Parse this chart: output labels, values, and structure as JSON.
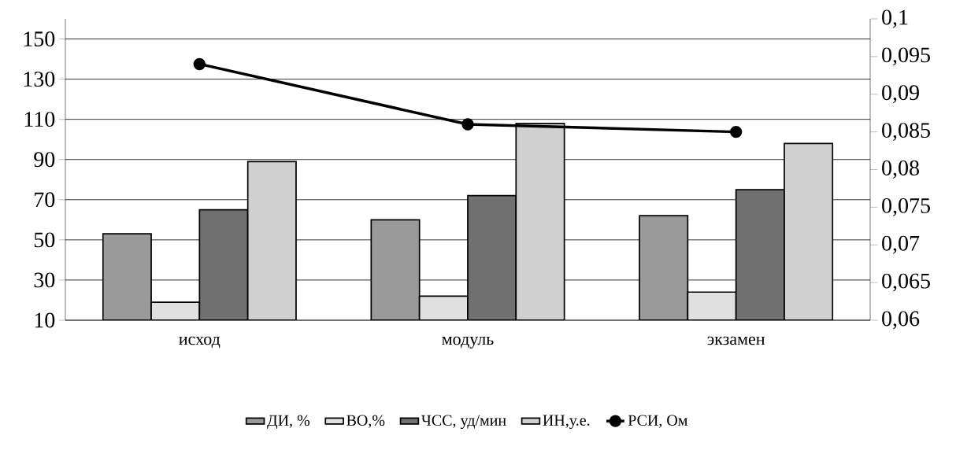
{
  "chart_data": {
    "type": "bar",
    "categories": [
      "исход",
      "модуль",
      "экзамен"
    ],
    "series": [
      {
        "name": "ДИ, %",
        "color": "#9a9a9a",
        "values": [
          53,
          60,
          62
        ]
      },
      {
        "name": "ВО,%",
        "color": "#e0e0e0",
        "values": [
          19,
          22,
          24
        ]
      },
      {
        "name": "ЧСС, уд/мин",
        "color": "#707070",
        "values": [
          65,
          72,
          75
        ]
      },
      {
        "name": "ИН,у.е.",
        "color": "#d0d0d0",
        "values": [
          89,
          108,
          98
        ]
      },
      {
        "name": "РСИ, Ом",
        "type": "line",
        "axis": "y2",
        "color": "#000000",
        "marker": "circle",
        "values": [
          0.094,
          0.086,
          0.085
        ]
      }
    ],
    "ylim": [
      10,
      160
    ],
    "yticks": [
      10,
      30,
      50,
      70,
      90,
      110,
      130,
      150
    ],
    "y2lim": [
      0.06,
      0.1
    ],
    "y2ticks": [
      {
        "value": 0.06,
        "label": "0,06"
      },
      {
        "value": 0.065,
        "label": "0,065"
      },
      {
        "value": 0.07,
        "label": "0,07"
      },
      {
        "value": 0.075,
        "label": "0,075"
      },
      {
        "value": 0.08,
        "label": "0,08"
      },
      {
        "value": 0.085,
        "label": "0,085"
      },
      {
        "value": 0.09,
        "label": "0,09"
      },
      {
        "value": 0.095,
        "label": "0,095"
      },
      {
        "value": 0.1,
        "label": "0,1"
      }
    ],
    "grid": "y",
    "legend": "bottom"
  }
}
